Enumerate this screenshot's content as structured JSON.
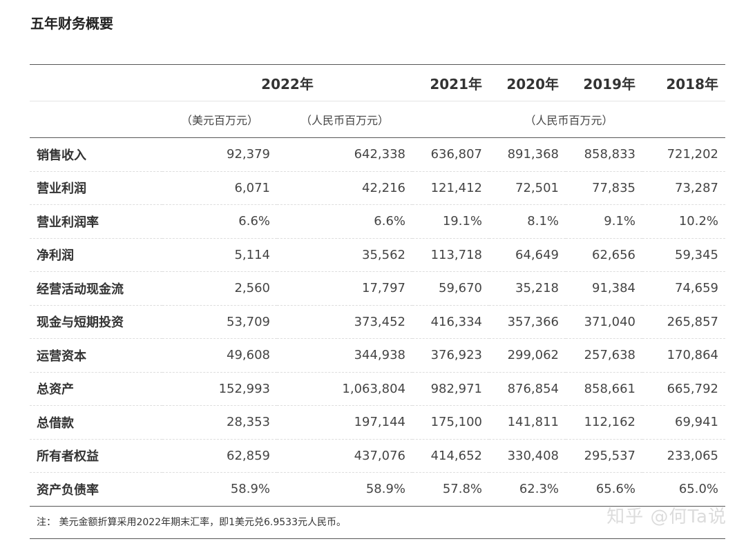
{
  "title": "五年财务概要",
  "years": {
    "y2022": "2022年",
    "y2021": "2021年",
    "y2020": "2020年",
    "y2019": "2019年",
    "y2018": "2018年"
  },
  "units": {
    "usd": "（美元百万元）",
    "rmb_2022": "（人民币百万元）",
    "rmb_hist": "（人民币百万元）"
  },
  "rows": [
    {
      "label": "销售收入",
      "v": [
        "92,379",
        "642,338",
        "636,807",
        "891,368",
        "858,833",
        "721,202"
      ]
    },
    {
      "label": "营业利润",
      "v": [
        "6,071",
        "42,216",
        "121,412",
        "72,501",
        "77,835",
        "73,287"
      ]
    },
    {
      "label": "营业利润率",
      "v": [
        "6.6%",
        "6.6%",
        "19.1%",
        "8.1%",
        "9.1%",
        "10.2%"
      ]
    },
    {
      "label": "净利润",
      "v": [
        "5,114",
        "35,562",
        "113,718",
        "64,649",
        "62,656",
        "59,345"
      ]
    },
    {
      "label": "经营活动现金流",
      "v": [
        "2,560",
        "17,797",
        "59,670",
        "35,218",
        "91,384",
        "74,659"
      ]
    },
    {
      "label": "现金与短期投资",
      "v": [
        "53,709",
        "373,452",
        "416,334",
        "357,366",
        "371,040",
        "265,857"
      ]
    },
    {
      "label": "运营资本",
      "v": [
        "49,608",
        "344,938",
        "376,923",
        "299,062",
        "257,638",
        "170,864"
      ]
    },
    {
      "label": "总资产",
      "v": [
        "152,993",
        "1,063,804",
        "982,971",
        "876,854",
        "858,661",
        "665,792"
      ]
    },
    {
      "label": "总借款",
      "v": [
        "28,353",
        "197,144",
        "175,100",
        "141,811",
        "112,162",
        "69,941"
      ]
    },
    {
      "label": "所有者权益",
      "v": [
        "62,859",
        "437,076",
        "414,652",
        "330,408",
        "295,537",
        "233,065"
      ]
    },
    {
      "label": "资产负债率",
      "v": [
        "58.9%",
        "58.9%",
        "57.8%",
        "62.3%",
        "65.6%",
        "65.0%"
      ]
    }
  ],
  "footnote": "注： 美元金额折算采用2022年期末汇率，即1美元兑6.9533元人民币。",
  "watermark": "知乎 @何Ta说"
}
